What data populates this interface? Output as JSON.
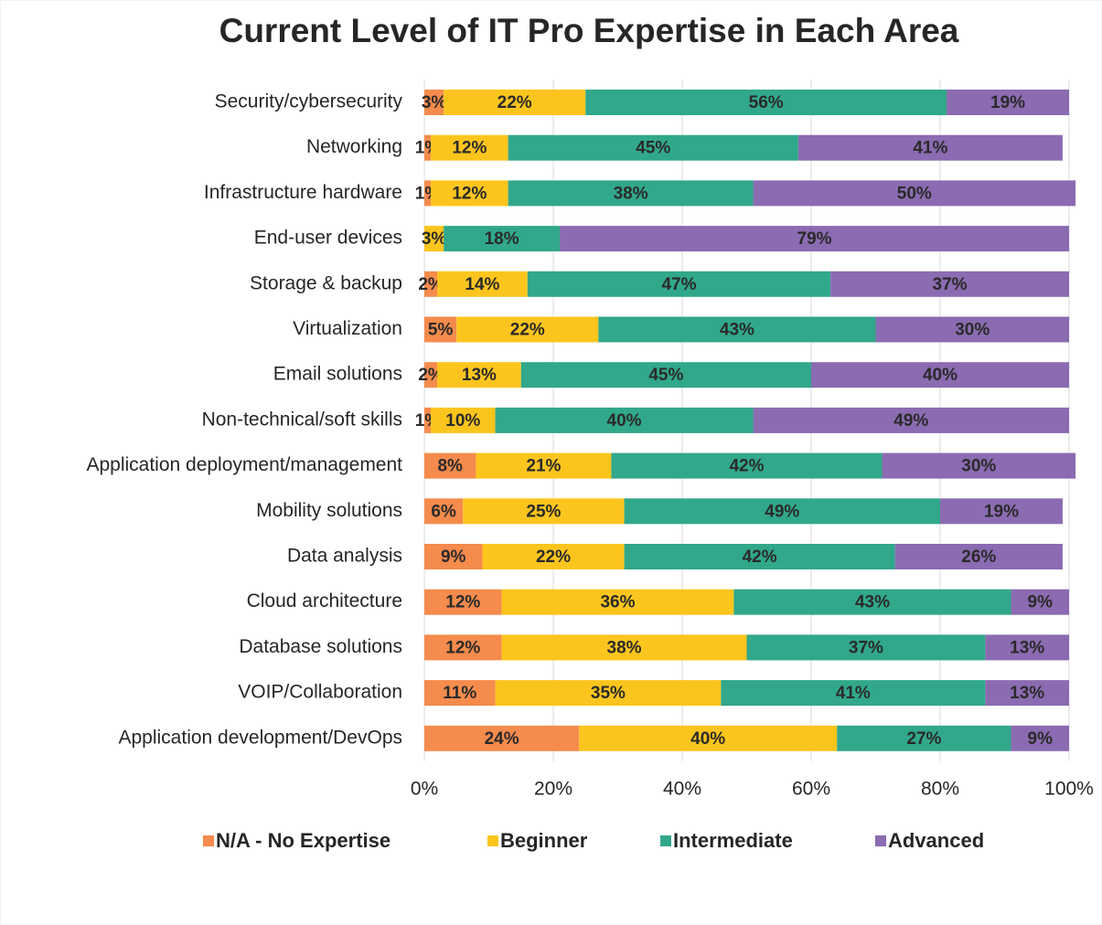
{
  "chart_data": {
    "type": "stacked-bar-horizontal",
    "title": "Current Level of IT Pro Expertise in Each Area",
    "categories": [
      "Security/cybersecurity",
      "Networking",
      "Infrastructure hardware",
      "End-user devices",
      "Storage & backup",
      "Virtualization",
      "Email solutions",
      "Non-technical/soft skills",
      "Application deployment/management",
      "Mobility solutions",
      "Data analysis",
      "Cloud architecture",
      "Database solutions",
      "VOIP/Collaboration",
      "Application development/DevOps"
    ],
    "series": [
      {
        "name": "N/A - No Expertise",
        "color": "#f58b4c",
        "values": [
          3,
          1,
          1,
          0,
          2,
          5,
          2,
          1,
          8,
          6,
          9,
          12,
          12,
          11,
          24
        ],
        "value_labels": [
          "3%",
          "1%",
          "1%",
          null,
          "2%",
          "5%",
          "2%",
          "1%",
          "8%",
          "6%",
          "9%",
          "12%",
          "12%",
          "11%",
          "24%"
        ]
      },
      {
        "name": "Beginner",
        "color": "#fcc51e",
        "values": [
          22,
          12,
          12,
          3,
          14,
          22,
          13,
          10,
          21,
          25,
          22,
          36,
          38,
          35,
          40
        ],
        "value_labels": [
          "22%",
          "12%",
          "12%",
          "3%",
          "14%",
          "22%",
          "13%",
          "10%",
          "21%",
          "25%",
          "22%",
          "36%",
          "38%",
          "35%",
          "40%"
        ]
      },
      {
        "name": "Intermediate",
        "color": "#31a88b",
        "values": [
          56,
          45,
          38,
          18,
          47,
          43,
          45,
          40,
          42,
          49,
          42,
          43,
          37,
          41,
          27
        ],
        "value_labels": [
          "56%",
          "45%",
          "38%",
          "18%",
          "47%",
          "43%",
          "45%",
          "40%",
          "42%",
          "49%",
          "42%",
          "43%",
          "37%",
          "41%",
          "27%"
        ]
      },
      {
        "name": "Advanced",
        "color": "#8b6bb1",
        "values": [
          19,
          41,
          50,
          79,
          37,
          30,
          40,
          49,
          30,
          19,
          26,
          9,
          13,
          13,
          9
        ],
        "value_labels": [
          "19%",
          "41%",
          "50%",
          "79%",
          "37%",
          "30%",
          "40%",
          "49%",
          "30%",
          "19%",
          "26%",
          "9%",
          "13%",
          "13%",
          "9%"
        ]
      }
    ],
    "xlim": [
      0,
      100
    ],
    "xticks": [
      {
        "value": 0,
        "label": "0%"
      },
      {
        "value": 20,
        "label": "20%"
      },
      {
        "value": 40,
        "label": "40%"
      },
      {
        "value": 60,
        "label": "60%"
      },
      {
        "value": 80,
        "label": "80%"
      },
      {
        "value": 100,
        "label": "100%"
      }
    ],
    "grid": true,
    "legend": "bottom"
  }
}
